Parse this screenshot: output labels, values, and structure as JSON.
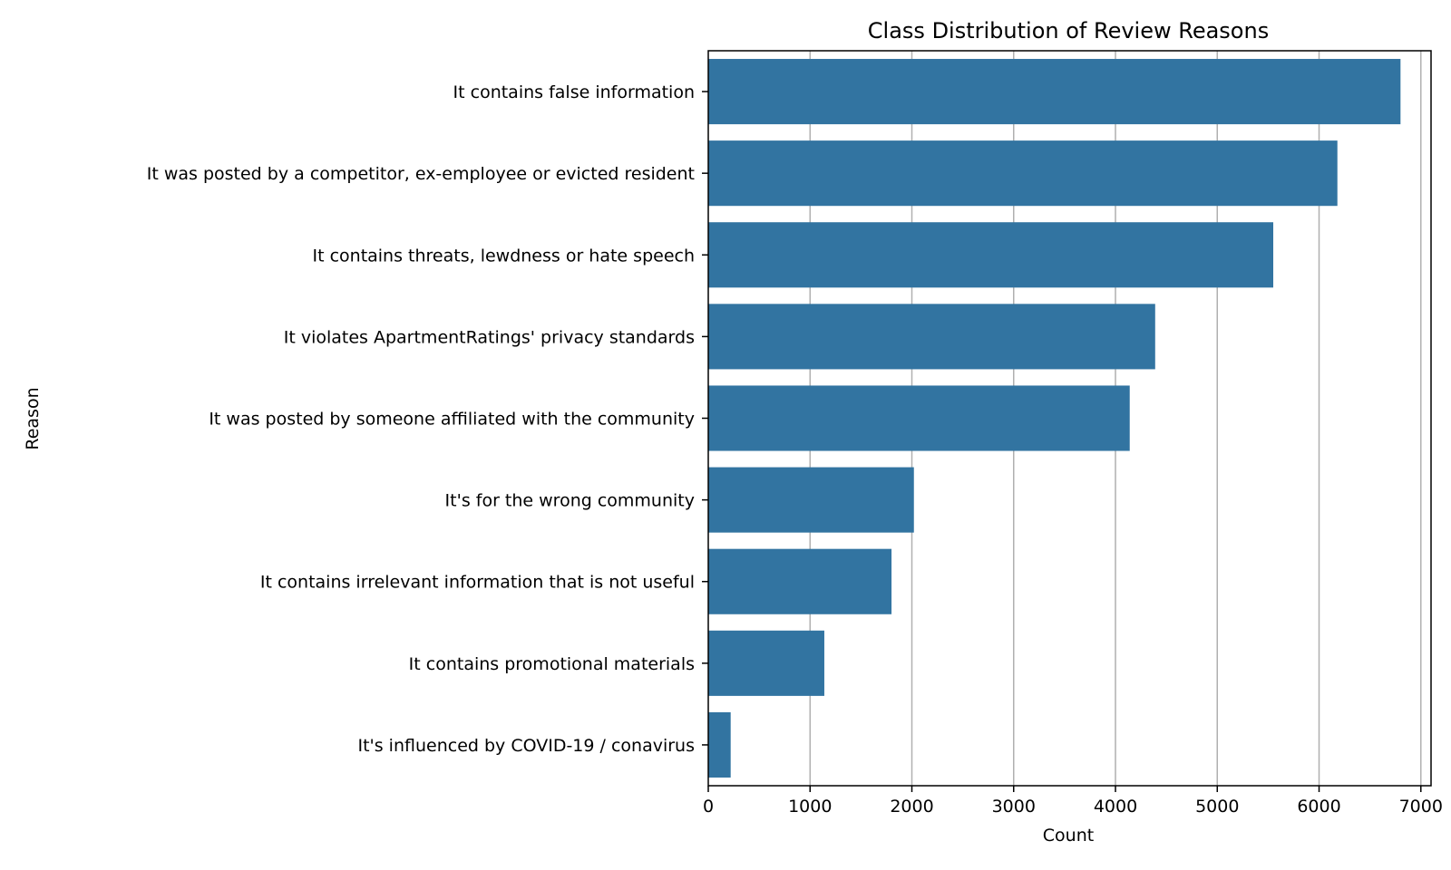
{
  "chart_data": {
    "type": "bar",
    "orientation": "horizontal",
    "title": "Class Distribution of Review Reasons",
    "xlabel": "Count",
    "ylabel": "Reason",
    "xlim": [
      0,
      7100
    ],
    "xticks": [
      0,
      1000,
      2000,
      3000,
      4000,
      5000,
      6000,
      7000
    ],
    "grid": "x",
    "bar_color": "#3274a1",
    "categories": [
      "It contains false information",
      "It was posted by a competitor, ex-employee or evicted resident",
      "It contains threats, lewdness or hate speech",
      "It violates ApartmentRatings' privacy standards",
      "It was posted by someone affiliated with the community",
      "It's for the wrong community",
      "It contains irrelevant information that is not useful",
      "It contains promotional materials",
      "It's influenced by COVID-19 / conavirus"
    ],
    "values": [
      6800,
      6180,
      5550,
      4390,
      4140,
      2020,
      1800,
      1140,
      220
    ]
  }
}
